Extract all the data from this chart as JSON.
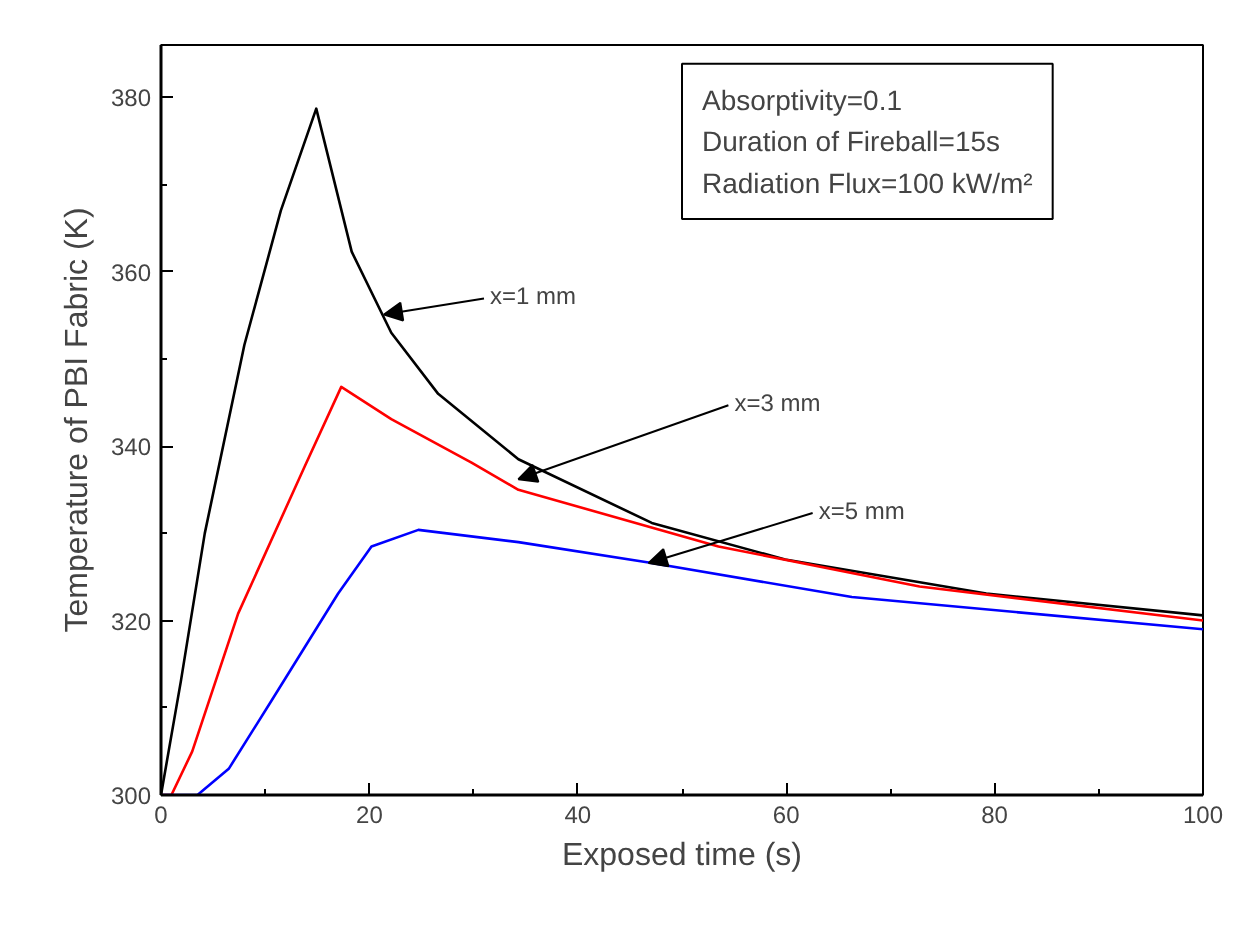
{
  "chart_data": {
    "type": "line",
    "xlabel": "Exposed time (s)",
    "ylabel": "Temperature of PBI Fabric (K)",
    "xlim": [
      0,
      100
    ],
    "ylim": [
      300,
      386
    ],
    "xticks": [
      0,
      20,
      40,
      60,
      80,
      100
    ],
    "yticks": [
      300,
      320,
      340,
      360,
      380
    ],
    "grid": false,
    "line_style": "solid",
    "series": [
      {
        "color": "#000000",
        "x": [
          0,
          1.9,
          4.2,
          8,
          11.5,
          14.9,
          18.3,
          22.1,
          26.6,
          34.3,
          47.1,
          59.9,
          79.2,
          100
        ],
        "values": [
          300,
          313,
          330,
          351.6,
          367,
          378.7,
          362.3,
          353,
          346,
          338.5,
          331.2,
          327,
          323.1,
          320.6
        ]
      },
      {
        "color": "#ff0000",
        "x": [
          0,
          1,
          3,
          7.4,
          13.8,
          17.3,
          22.1,
          29.8,
          34.3,
          53.5,
          72.8,
          100
        ],
        "values": [
          300,
          300,
          305,
          320.8,
          337.7,
          346.8,
          343.1,
          338.1,
          335,
          328.5,
          323.9,
          320.0
        ]
      },
      {
        "color": "#0000ff",
        "x": [
          0,
          3.5,
          6.5,
          10.6,
          17,
          20.2,
          24.7,
          34.3,
          47.1,
          66.3,
          100
        ],
        "values": [
          300,
          300,
          303,
          310.8,
          323.1,
          328.5,
          330.4,
          329,
          326.6,
          322.7,
          319.0
        ]
      }
    ],
    "annotations": [
      {
        "text": "x=1 mm",
        "x": 21.4,
        "y": 355.1
      },
      {
        "text": "x=3 mm",
        "x": 34.3,
        "y": 336.2
      },
      {
        "text": "x=5 mm",
        "x": 46.8,
        "y": 326.6
      },
      "Absorptivity=0.1",
      "Duration of Fireball=15s",
      "Radiation Flux=100 kW/m²"
    ]
  }
}
